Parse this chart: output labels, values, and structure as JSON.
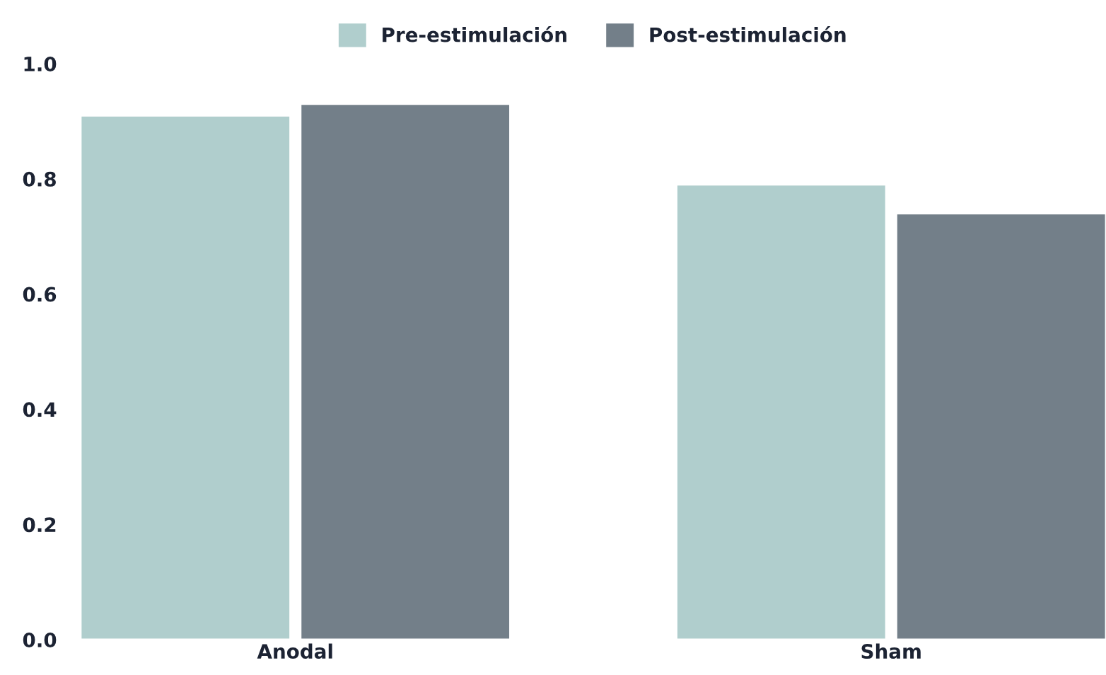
{
  "chart_data": {
    "type": "bar",
    "categories": [
      "Anodal",
      "Sham"
    ],
    "series": [
      {
        "name": "Pre-estimulación",
        "color": "#b0cecd",
        "values": [
          0.91,
          0.79
        ]
      },
      {
        "name": "Post-estimulación",
        "color": "#737f89",
        "values": [
          0.93,
          0.74
        ]
      }
    ],
    "ylim": [
      0,
      1.0
    ],
    "yticks": [
      {
        "value": 0,
        "label": "0.0"
      },
      0.2,
      0.4,
      0.6,
      0.8,
      {
        "value": 1,
        "label": "1.0"
      }
    ],
    "grid": false,
    "legend": "top"
  }
}
